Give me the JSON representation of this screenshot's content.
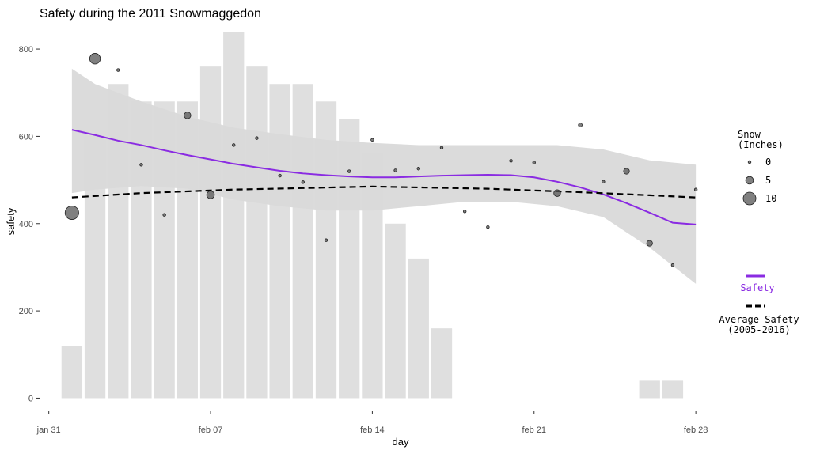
{
  "chart_data": {
    "type": "bar",
    "title": "Safety during the 2011 Snowmaggedon",
    "xlabel": "day",
    "ylabel": "safety",
    "x_ticks": [
      {
        "label": "jan 31",
        "day": 0
      },
      {
        "label": "feb 07",
        "day": 7
      },
      {
        "label": "feb 14",
        "day": 14
      },
      {
        "label": "feb 21",
        "day": 21
      },
      {
        "label": "feb 28",
        "day": 28
      }
    ],
    "y_ticks": [
      0,
      200,
      400,
      600,
      800
    ],
    "xlim": [
      -0.4,
      29.4
    ],
    "ylim": [
      -30,
      840
    ],
    "grid": false,
    "bars": {
      "days": [
        1,
        2,
        3,
        4,
        5,
        6,
        7,
        8,
        9,
        10,
        11,
        12,
        13,
        14,
        15,
        16,
        17,
        26,
        27
      ],
      "values": [
        120,
        600,
        720,
        680,
        680,
        680,
        760,
        840,
        760,
        720,
        720,
        680,
        640,
        560,
        400,
        320,
        160,
        40,
        40
      ],
      "color": "#d9d9d9"
    },
    "points": {
      "days": [
        1,
        2,
        3,
        4,
        5,
        6,
        7,
        8,
        9,
        10,
        11,
        12,
        13,
        14,
        15,
        16,
        17,
        18,
        19,
        20,
        21,
        22,
        23,
        24,
        25,
        26,
        27,
        28
      ],
      "safety": [
        425,
        778,
        752,
        535,
        420,
        648,
        466,
        580,
        596,
        510,
        495,
        362,
        520,
        592,
        522,
        526,
        574,
        428,
        392,
        544,
        540,
        470,
        626,
        496,
        520,
        355,
        305,
        478
      ],
      "snow_inches": [
        11,
        8,
        0,
        0,
        0,
        4,
        5,
        0,
        0,
        0,
        0,
        0,
        0,
        0,
        0,
        0,
        0,
        0,
        0,
        0,
        0,
        4,
        1,
        0,
        3,
        3,
        0,
        0
      ],
      "color": "#555555"
    },
    "series": [
      {
        "name": "Safety",
        "x": [
          1,
          2,
          3,
          4,
          5,
          6,
          7,
          8,
          9,
          10,
          11,
          12,
          13,
          14,
          15,
          16,
          17,
          18,
          19,
          20,
          21,
          22,
          23,
          24,
          25,
          26,
          27,
          28
        ],
        "values": [
          615,
          603,
          590,
          580,
          568,
          557,
          547,
          537,
          529,
          521,
          515,
          511,
          508,
          506,
          506,
          508,
          510,
          511,
          512,
          511,
          506,
          496,
          483,
          467,
          447,
          425,
          402,
          398
        ],
        "color": "#8A2BE2"
      },
      {
        "name": "Average Safety\n(2005-2016)",
        "x": [
          1,
          4,
          8,
          14,
          19,
          23,
          26,
          28
        ],
        "values": [
          460,
          470,
          478,
          485,
          480,
          472,
          465,
          460
        ],
        "color": "#000000"
      }
    ],
    "confidence_band": {
      "x": [
        1,
        2,
        4,
        6,
        8,
        10,
        12,
        14,
        16,
        18,
        20,
        22,
        24,
        26,
        28
      ],
      "upper": [
        755,
        720,
        680,
        645,
        620,
        605,
        592,
        585,
        580,
        580,
        580,
        580,
        570,
        545,
        535
      ],
      "lower": [
        470,
        478,
        486,
        480,
        455,
        440,
        430,
        430,
        440,
        450,
        450,
        440,
        415,
        345,
        262
      ],
      "color": "#999999"
    },
    "legend": {
      "position": "right",
      "size_title": "Snow\n(Inches)",
      "size_entries": [
        {
          "label": "0",
          "inches": 0
        },
        {
          "label": "5",
          "inches": 5
        },
        {
          "label": "10",
          "inches": 10
        }
      ],
      "line_entries": [
        {
          "label": "Safety",
          "color": "#8A2BE2",
          "dash": "solid"
        },
        {
          "label": "Average Safety\n(2005-2016)",
          "color": "#000000",
          "dash": "dashed"
        }
      ]
    }
  }
}
